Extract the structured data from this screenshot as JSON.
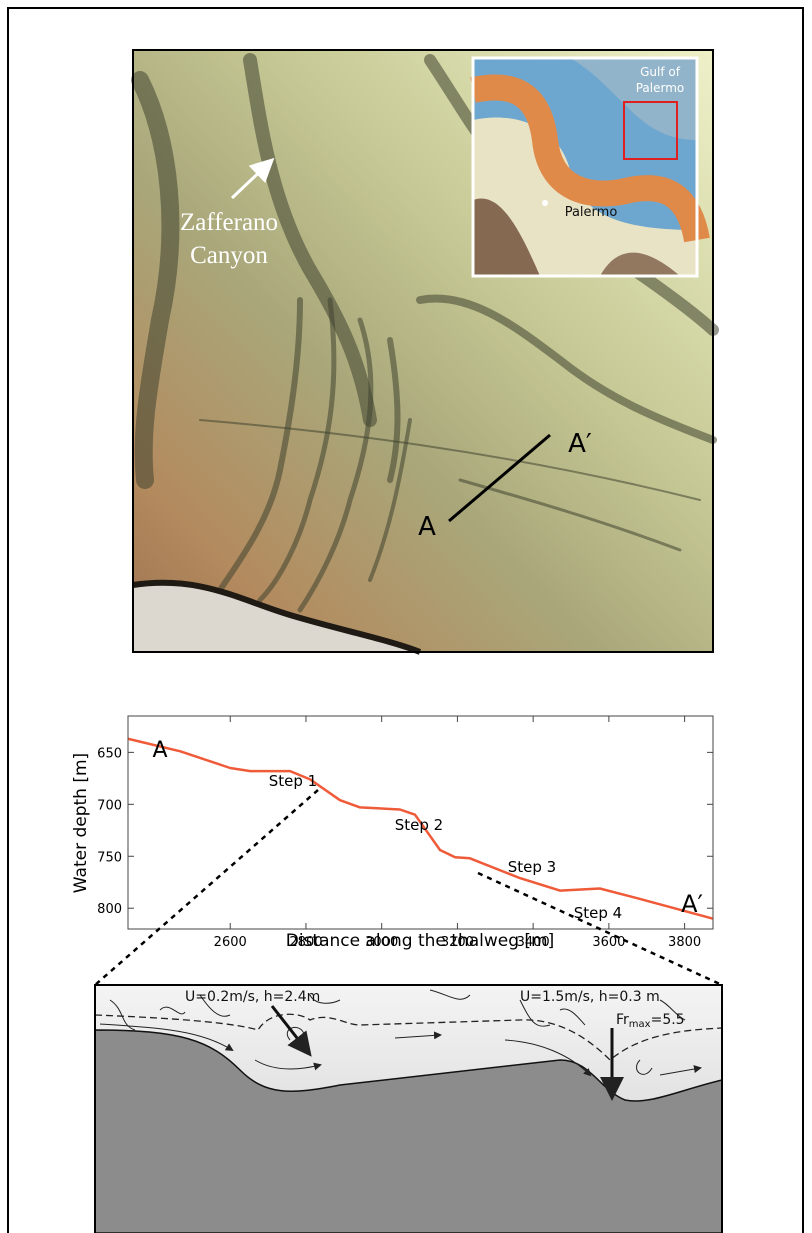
{
  "map": {
    "canyon_label": [
      "Zafferano",
      "Canyon"
    ],
    "point_a": "A",
    "point_a_prime": "A′",
    "inset": {
      "gulf_label": [
        "Gulf of",
        "Palermo"
      ],
      "city_label": "Palermo"
    }
  },
  "chart_data": {
    "type": "line",
    "x": [
      2331,
      2468,
      2600,
      2653,
      2758,
      2811,
      2890,
      2943,
      3048,
      3088,
      3154,
      3194,
      3233,
      3365,
      3471,
      3576,
      3682,
      3874
    ],
    "values": [
      637,
      649,
      665,
      668,
      668,
      676,
      696,
      703,
      705,
      710,
      744,
      751,
      752,
      771,
      783,
      781,
      791,
      810
    ],
    "color": "#ef5a38",
    "xlabel": "Distance along the thalweg [m]",
    "ylabel": "Water depth [m]",
    "xlim": [
      2330,
      3875
    ],
    "xticks": [
      2600,
      2800,
      3000,
      3200,
      3400,
      3600,
      3800
    ],
    "ylim": [
      615,
      820
    ],
    "yticks": [
      650,
      700,
      750,
      800
    ],
    "y_reversed": true,
    "annotations": [
      "A",
      "A′",
      "Step 1",
      "Step 2",
      "Step 3",
      "Step 4"
    ]
  },
  "schematic": {
    "label_left": "U=0.2m/s, h=2.4m",
    "label_right": "U=1.5m/s, h=0.3 m",
    "froude": {
      "symbol": "Fr",
      "subscript": "max",
      "value": "=5.5"
    }
  }
}
